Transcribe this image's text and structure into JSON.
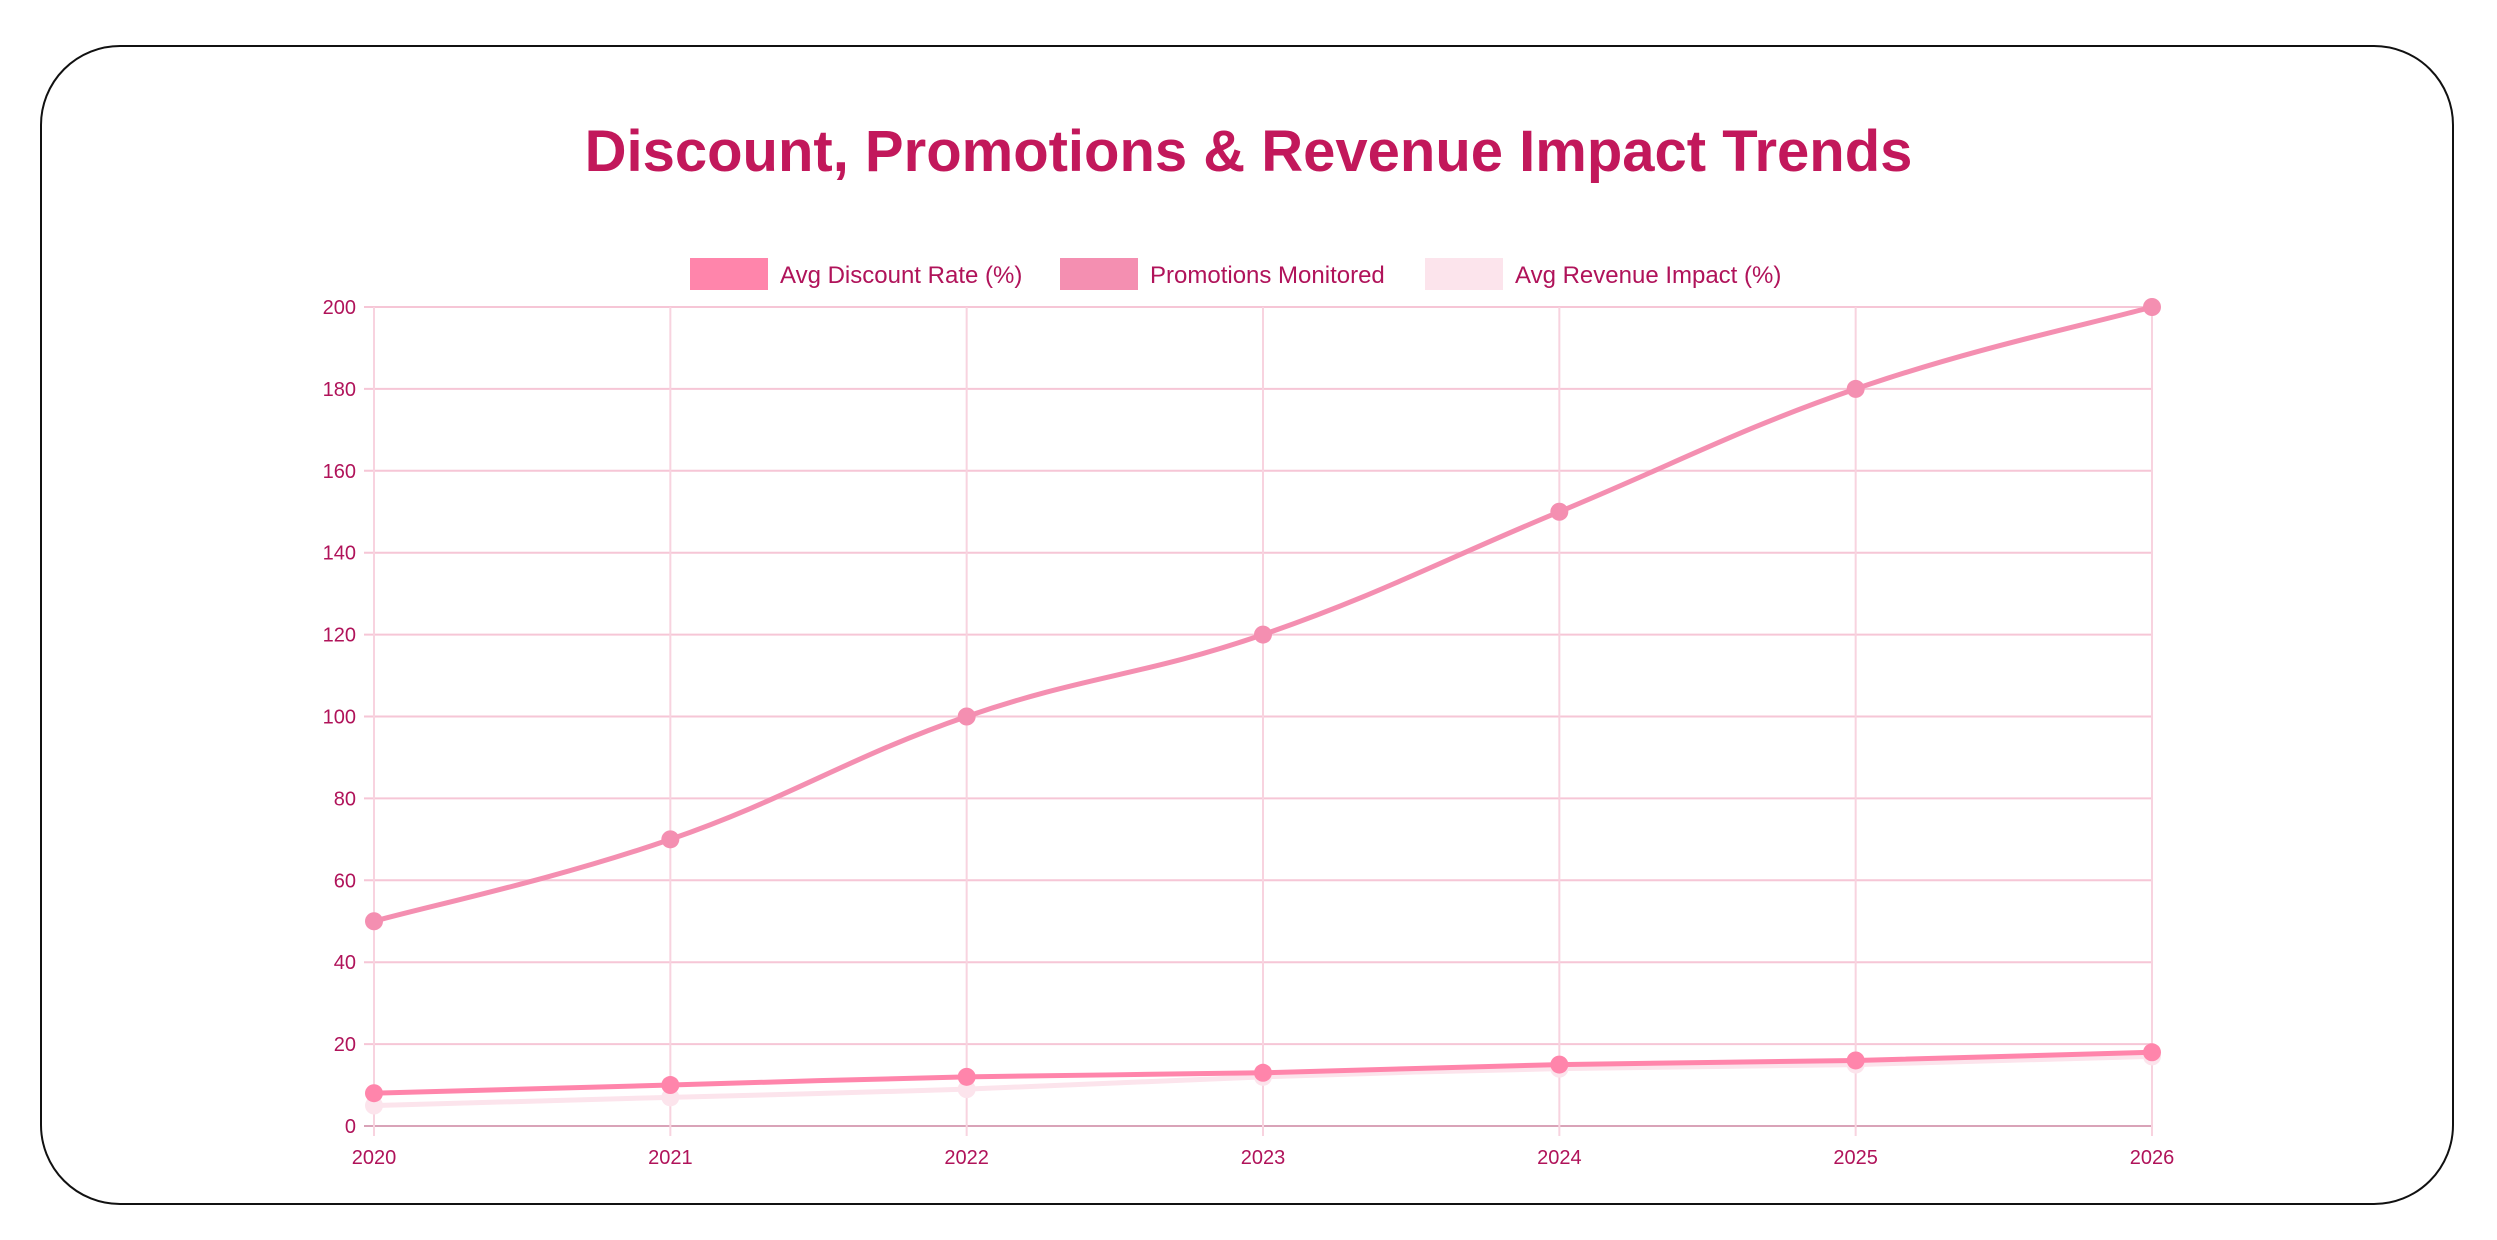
{
  "chart_data": {
    "type": "line",
    "title": "Discount, Promotions & Revenue Impact Trends",
    "categories": [
      "2020",
      "2021",
      "2022",
      "2023",
      "2024",
      "2025",
      "2026"
    ],
    "ylim": [
      0,
      200
    ],
    "yticks": [
      0,
      20,
      40,
      60,
      80,
      100,
      120,
      140,
      160,
      180,
      200
    ],
    "grid": true,
    "legend": "top",
    "series": [
      {
        "name": "Avg Discount Rate (%)",
        "values": [
          8,
          10,
          12,
          13,
          15,
          16,
          18
        ],
        "color": "#ff85ab"
      },
      {
        "name": "Promotions Monitored",
        "values": [
          50,
          70,
          100,
          120,
          150,
          180,
          200
        ],
        "color": "#f48fb1"
      },
      {
        "name": "Avg Revenue Impact (%)",
        "values": [
          5,
          7,
          9,
          12,
          14,
          15,
          17
        ],
        "color": "#fce4ec"
      }
    ],
    "text_color": "#c2185b"
  }
}
